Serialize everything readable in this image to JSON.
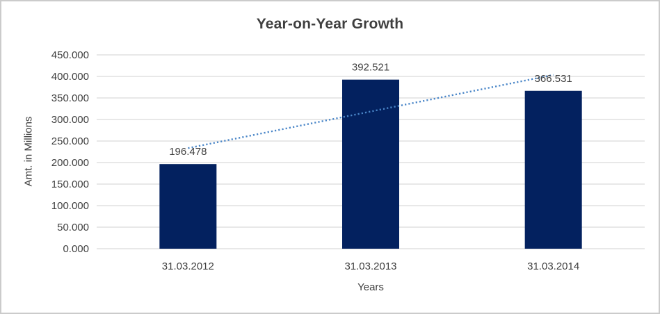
{
  "frame": {
    "background": "#ffffff",
    "border_color": "#cbcbcb"
  },
  "chart_data": {
    "type": "bar",
    "title": "Year-on-Year Growth",
    "xlabel": "Years",
    "ylabel": "Amt. in Millions",
    "categories": [
      "31.03.2012",
      "31.03.2013",
      "31.03.2014"
    ],
    "series": [
      {
        "values": [
          196.478,
          392.521,
          366.531
        ],
        "data_labels": [
          "196.478",
          "392.521",
          "366.531"
        ],
        "color": "#03215F"
      }
    ],
    "ylim": [
      0,
      450
    ],
    "ytick_step": 50,
    "ytick_labels": [
      "0.000",
      "50.000",
      "100.000",
      "150.000",
      "200.000",
      "250.000",
      "300.000",
      "350.000",
      "400.000",
      "450.000"
    ],
    "grid": true,
    "gridline_color": "#D9D9D9",
    "text_color": "#404040",
    "legend_position": "none",
    "trendline": {
      "type": "linear",
      "style": "dotted",
      "color": "#4A86C8"
    }
  }
}
